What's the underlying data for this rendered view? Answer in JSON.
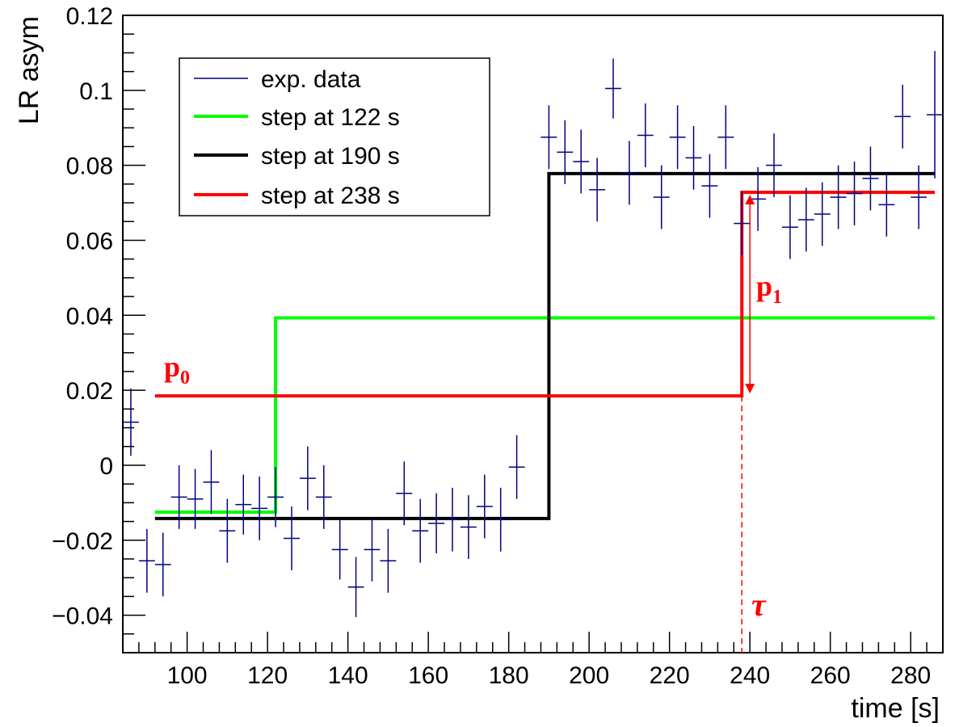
{
  "chart_data": {
    "type": "scatter",
    "xlabel": "time [s]",
    "ylabel": "LR asym",
    "xlim": [
      84,
      288
    ],
    "ylim": [
      -0.05,
      0.12
    ],
    "x_ticks": [
      100,
      120,
      140,
      160,
      180,
      200,
      220,
      240,
      260,
      280
    ],
    "x_tick_labels": [
      "100",
      "120",
      "140",
      "160",
      "180",
      "200",
      "220",
      "240",
      "260",
      "280"
    ],
    "y_ticks": [
      -0.04,
      -0.02,
      0,
      0.02,
      0.04,
      0.06,
      0.08,
      0.1,
      0.12
    ],
    "y_tick_labels": [
      "−0.04",
      "−0.02",
      "0",
      "0.02",
      "0.04",
      "0.06",
      "0.08",
      "0.1",
      "0.12"
    ],
    "grid": false,
    "legend_position": "top-left",
    "legend": [
      {
        "label": "exp. data",
        "color": "#000080"
      },
      {
        "label": "step at 122 s",
        "color": "#00ff00"
      },
      {
        "label": "step at 190 s",
        "color": "#000000"
      },
      {
        "label": "step at 238 s",
        "color": "#ff0000"
      }
    ],
    "data_series": {
      "name": "exp. data",
      "color": "#000080",
      "x_halfwidth": 2,
      "points": [
        {
          "x": 86,
          "y": 0.0115,
          "err": 0.009
        },
        {
          "x": 90,
          "y": -0.0255,
          "err": 0.0085
        },
        {
          "x": 94,
          "y": -0.0265,
          "err": 0.0085
        },
        {
          "x": 98,
          "y": -0.0085,
          "err": 0.0085
        },
        {
          "x": 102,
          "y": -0.009,
          "err": 0.008
        },
        {
          "x": 106,
          "y": -0.0045,
          "err": 0.0085
        },
        {
          "x": 110,
          "y": -0.0175,
          "err": 0.0085
        },
        {
          "x": 114,
          "y": -0.0105,
          "err": 0.008
        },
        {
          "x": 118,
          "y": -0.0115,
          "err": 0.0085
        },
        {
          "x": 122,
          "y": -0.0085,
          "err": 0.008
        },
        {
          "x": 126,
          "y": -0.0195,
          "err": 0.0085
        },
        {
          "x": 130,
          "y": -0.0035,
          "err": 0.0085
        },
        {
          "x": 134,
          "y": -0.0085,
          "err": 0.0085
        },
        {
          "x": 138,
          "y": -0.0225,
          "err": 0.008
        },
        {
          "x": 142,
          "y": -0.0325,
          "err": 0.008
        },
        {
          "x": 146,
          "y": -0.0225,
          "err": 0.0085
        },
        {
          "x": 150,
          "y": -0.0255,
          "err": 0.0085
        },
        {
          "x": 154,
          "y": -0.0075,
          "err": 0.0085
        },
        {
          "x": 158,
          "y": -0.0175,
          "err": 0.0085
        },
        {
          "x": 162,
          "y": -0.0155,
          "err": 0.008
        },
        {
          "x": 166,
          "y": -0.0145,
          "err": 0.0085
        },
        {
          "x": 170,
          "y": -0.0165,
          "err": 0.0085
        },
        {
          "x": 174,
          "y": -0.011,
          "err": 0.0085
        },
        {
          "x": 178,
          "y": -0.0145,
          "err": 0.0085
        },
        {
          "x": 182,
          "y": -0.0005,
          "err": 0.0085
        },
        {
          "x": 186,
          "y": null,
          "err": 0
        },
        {
          "x": 190,
          "y": 0.0875,
          "err": 0.0085
        },
        {
          "x": 194,
          "y": 0.0835,
          "err": 0.0085
        },
        {
          "x": 198,
          "y": 0.081,
          "err": 0.0085
        },
        {
          "x": 202,
          "y": 0.0735,
          "err": 0.0085
        },
        {
          "x": 206,
          "y": 0.1005,
          "err": 0.008
        },
        {
          "x": 210,
          "y": 0.078,
          "err": 0.0085
        },
        {
          "x": 214,
          "y": 0.088,
          "err": 0.0085
        },
        {
          "x": 218,
          "y": 0.0715,
          "err": 0.0085
        },
        {
          "x": 222,
          "y": 0.0875,
          "err": 0.0085
        },
        {
          "x": 226,
          "y": 0.082,
          "err": 0.0085
        },
        {
          "x": 230,
          "y": 0.0745,
          "err": 0.0085
        },
        {
          "x": 234,
          "y": 0.0875,
          "err": 0.0085
        },
        {
          "x": 238,
          "y": 0.0645,
          "err": 0.0085
        },
        {
          "x": 242,
          "y": 0.071,
          "err": 0.0085
        },
        {
          "x": 246,
          "y": 0.08,
          "err": 0.0085
        },
        {
          "x": 250,
          "y": 0.0635,
          "err": 0.0085
        },
        {
          "x": 254,
          "y": 0.0655,
          "err": 0.0085
        },
        {
          "x": 258,
          "y": 0.067,
          "err": 0.0085
        },
        {
          "x": 262,
          "y": 0.0715,
          "err": 0.0085
        },
        {
          "x": 266,
          "y": 0.0725,
          "err": 0.0085
        },
        {
          "x": 270,
          "y": 0.0765,
          "err": 0.0085
        },
        {
          "x": 274,
          "y": 0.0695,
          "err": 0.0085
        },
        {
          "x": 278,
          "y": 0.093,
          "err": 0.0085
        },
        {
          "x": 282,
          "y": 0.0715,
          "err": 0.0085
        },
        {
          "x": 286,
          "y": 0.0935,
          "err": 0.017
        }
      ]
    },
    "step_fits": [
      {
        "name": "step at 122 s",
        "color": "#00ff00",
        "x_start": 92,
        "x_step": 122,
        "x_end": 286,
        "y_before": -0.0125,
        "y_after": 0.0393
      },
      {
        "name": "step at 190 s",
        "color": "#000000",
        "x_start": 92,
        "x_step": 190,
        "x_end": 286,
        "y_before": -0.0142,
        "y_after": 0.0778
      },
      {
        "name": "step at 238 s",
        "color": "#ff0000",
        "x_start": 92,
        "x_step": 238,
        "x_end": 286,
        "y_before": 0.0185,
        "y_after": 0.0728
      }
    ],
    "annotations": {
      "p0_label": "p",
      "p0_sub": "0",
      "p1_label": "p",
      "p1_sub": "1",
      "tau_label": "τ",
      "tau_x": 238,
      "p0_y": 0.0185,
      "p1_y_top": 0.0728
    }
  }
}
